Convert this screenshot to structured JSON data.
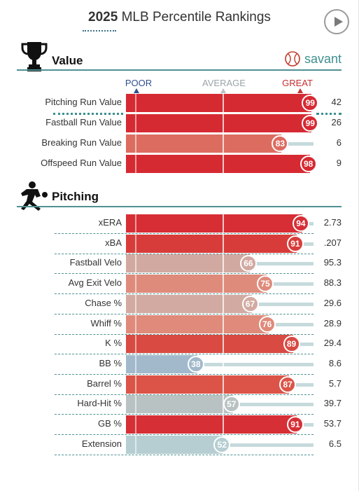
{
  "header": {
    "title_bold": "2025",
    "title_rest": "MLB Percentile Rankings"
  },
  "value_section": {
    "title": "Value",
    "brand": "savant",
    "scale": {
      "poor": "POOR",
      "average": "AVERAGE",
      "great": "GREAT"
    },
    "rows": [
      {
        "label": "Pitching Run Value",
        "percentile": "99",
        "value": "42",
        "color": "#d62a33"
      },
      {
        "label": "Fastball Run Value",
        "percentile": "99",
        "value": "26",
        "color": "#d62a33"
      },
      {
        "label": "Breaking Run Value",
        "percentile": "83",
        "value": "6",
        "color": "#dd6c60"
      },
      {
        "label": "Offspeed Run Value",
        "percentile": "98",
        "value": "9",
        "color": "#d62a33"
      }
    ]
  },
  "pitching_section": {
    "title": "Pitching",
    "rows": [
      {
        "label": "xERA",
        "percentile": "94",
        "value": "2.73",
        "color": "#d72e35"
      },
      {
        "label": "xBA",
        "percentile": "91",
        "value": ".207",
        "color": "#d83c3a"
      },
      {
        "label": "Fastball Velo",
        "percentile": "66",
        "value": "95.3",
        "color": "#d2a9a1"
      },
      {
        "label": "Avg Exit Velo",
        "percentile": "75",
        "value": "88.3",
        "color": "#df8b7c"
      },
      {
        "label": "Chase %",
        "percentile": "67",
        "value": "29.6",
        "color": "#d3aaa1"
      },
      {
        "label": "Whiff %",
        "percentile": "76",
        "value": "28.9",
        "color": "#df8a7a"
      },
      {
        "label": "K %",
        "percentile": "89",
        "value": "29.4",
        "color": "#d84a42"
      },
      {
        "label": "BB %",
        "percentile": "38",
        "value": "8.6",
        "color": "#a2b9cc"
      },
      {
        "label": "Barrel %",
        "percentile": "87",
        "value": "5.7",
        "color": "#dc5448"
      },
      {
        "label": "Hard-Hit %",
        "percentile": "57",
        "value": "39.7",
        "color": "#b9c2c2"
      },
      {
        "label": "GB %",
        "percentile": "91",
        "value": "53.7",
        "color": "#d72f36"
      },
      {
        "label": "Extension",
        "percentile": "52",
        "value": "6.5",
        "color": "#b6ced2"
      }
    ]
  },
  "colors": {
    "accent": "#4f9092",
    "great": "#d62a33",
    "poor": "#3a5e9e"
  }
}
